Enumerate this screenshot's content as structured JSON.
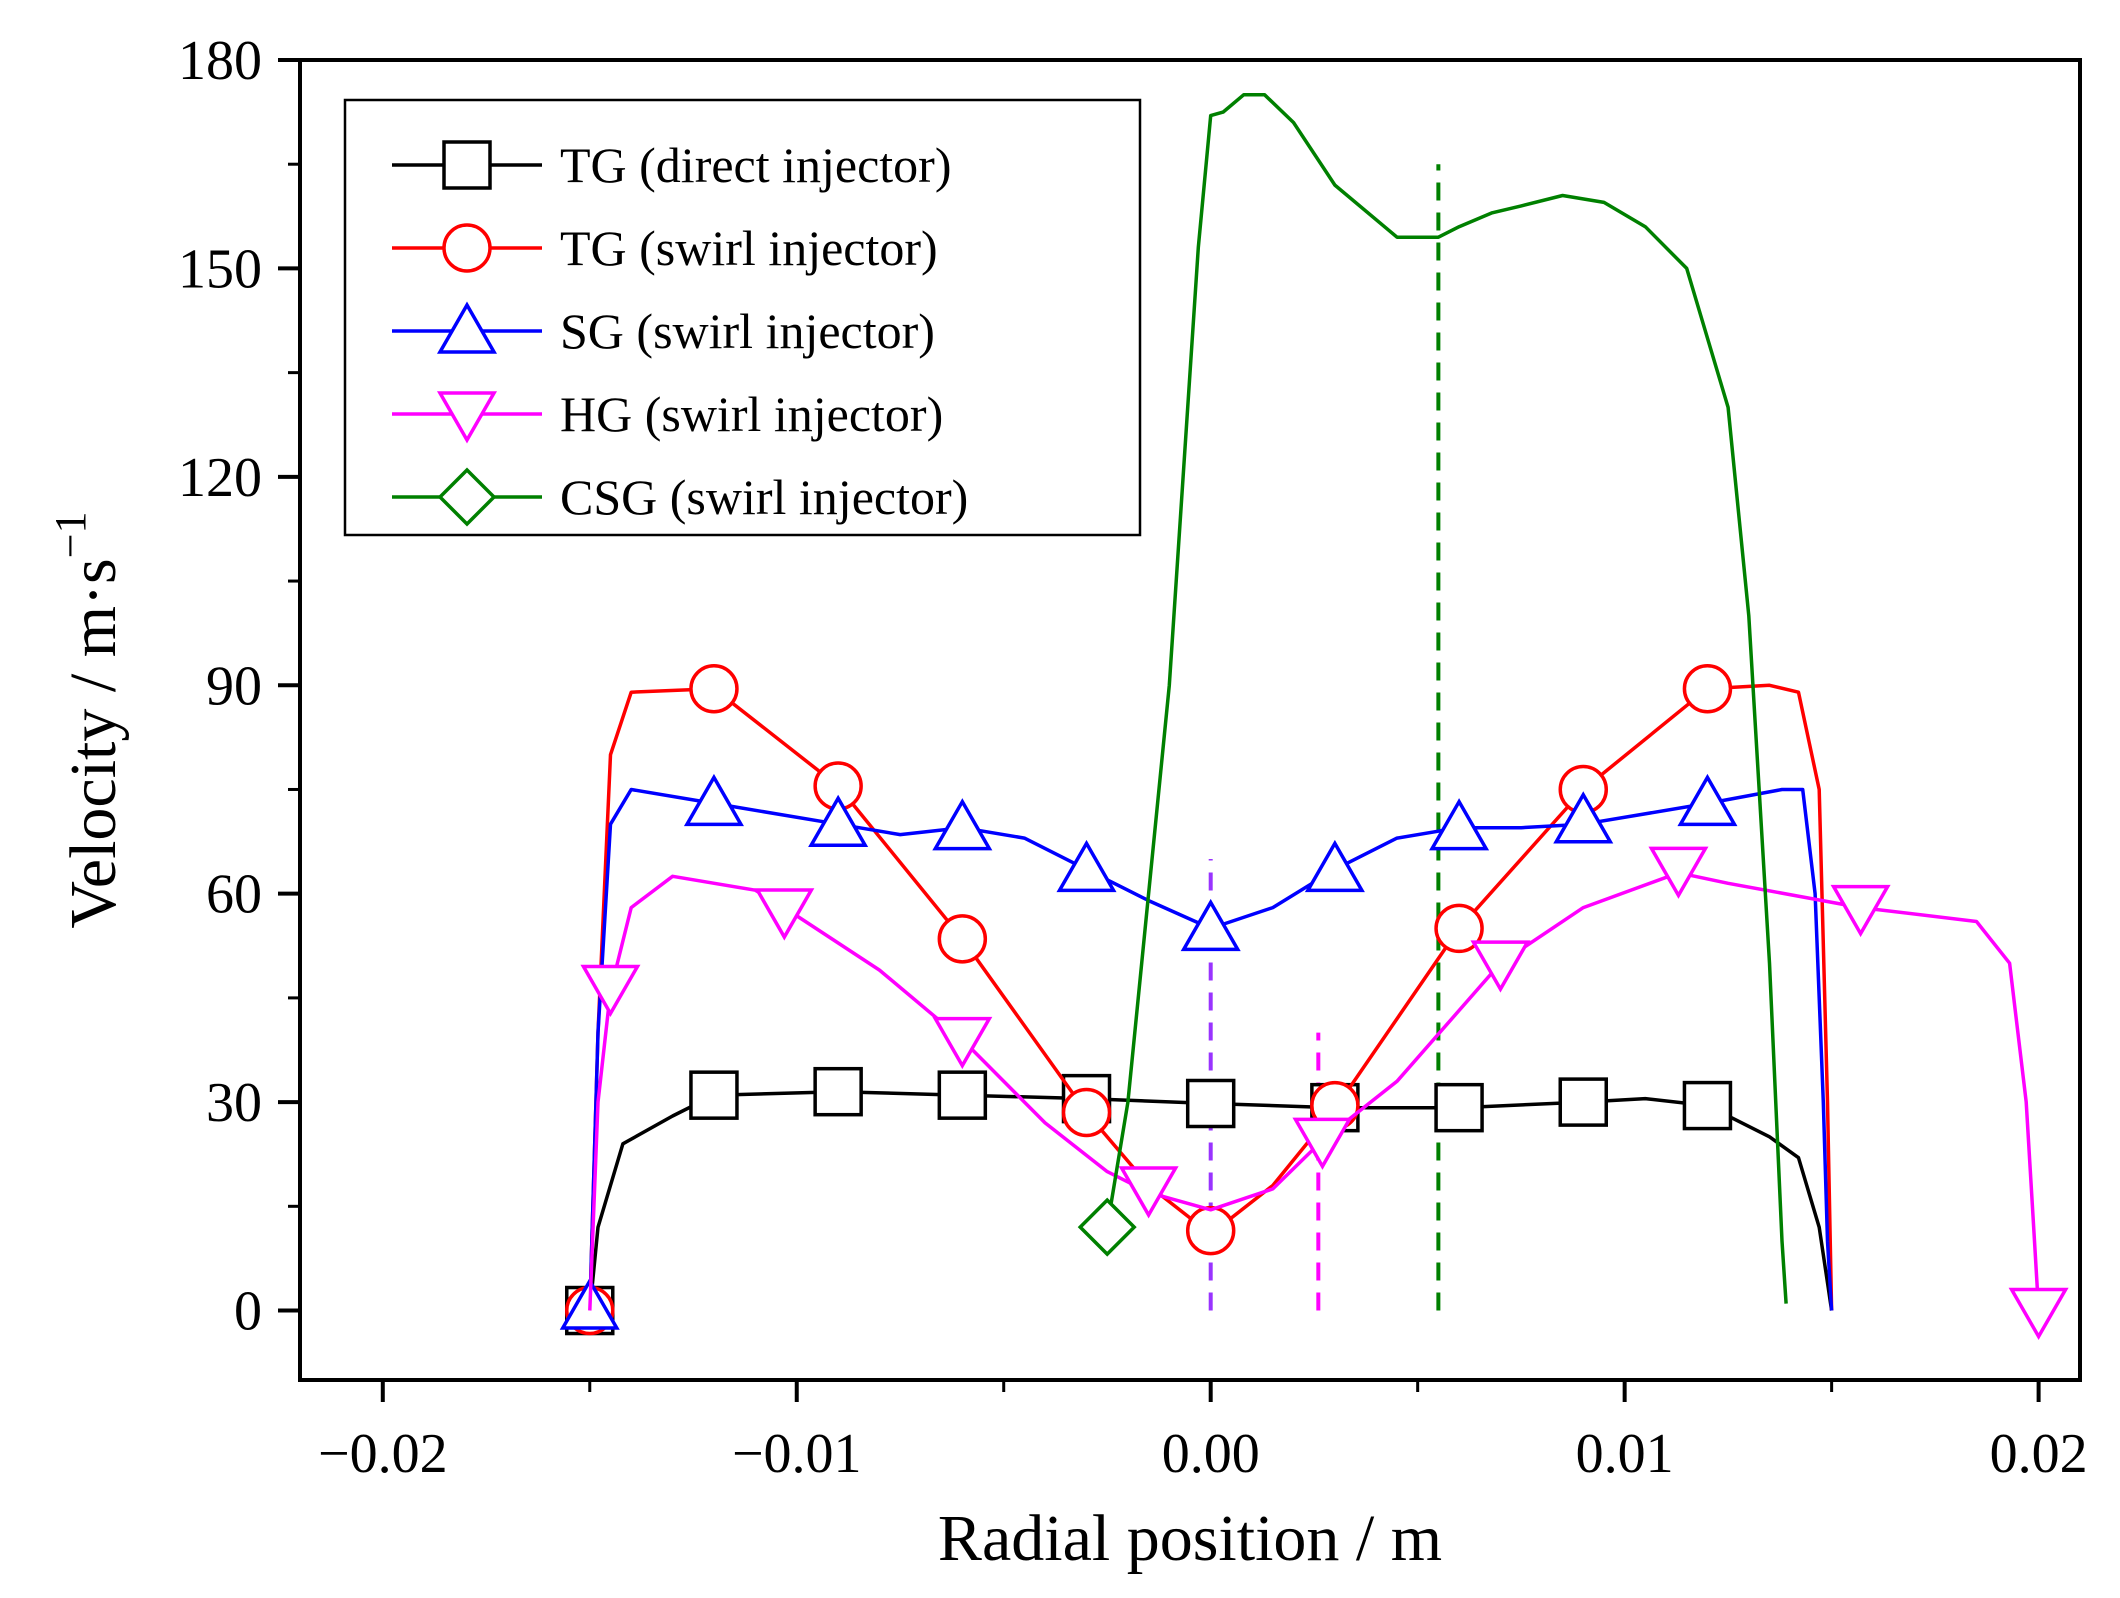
{
  "chart_data": {
    "type": "line",
    "xlabel": "Radial position / m",
    "ylabel": "Velocity / m·s",
    "ylabel_sup": "−1",
    "xlim": [
      -0.022,
      0.021
    ],
    "ylim": [
      -10,
      180
    ],
    "x_ticks": [
      -0.02,
      -0.01,
      0.0,
      0.01,
      0.02
    ],
    "x_tick_labels": [
      "−0.02",
      "−0.01",
      "0.00",
      "0.01",
      "0.02"
    ],
    "y_ticks": [
      0,
      30,
      60,
      90,
      120,
      150,
      180
    ],
    "y_tick_labels": [
      "0",
      "30",
      "60",
      "90",
      "120",
      "150",
      "180"
    ],
    "grid": false,
    "legend_position": "top-left",
    "series": [
      {
        "name": "TG (direct injector)",
        "color": "#000000",
        "marker": "square",
        "line": [
          [
            -0.015,
            0
          ],
          [
            -0.0148,
            12
          ],
          [
            -0.0142,
            24
          ],
          [
            -0.013,
            28
          ],
          [
            -0.012,
            31
          ],
          [
            -0.009,
            31.5
          ],
          [
            -0.006,
            31
          ],
          [
            -0.003,
            30.5
          ],
          [
            0,
            29.8
          ],
          [
            0.003,
            29.2
          ],
          [
            0.006,
            29.2
          ],
          [
            0.009,
            30
          ],
          [
            0.0105,
            30.5
          ],
          [
            0.012,
            29.5
          ],
          [
            0.0135,
            25
          ],
          [
            0.0142,
            22
          ],
          [
            0.0147,
            12
          ],
          [
            0.0149,
            4
          ],
          [
            0.015,
            0
          ]
        ],
        "markers": [
          [
            -0.015,
            0
          ],
          [
            -0.012,
            31
          ],
          [
            -0.009,
            31.5
          ],
          [
            -0.006,
            31
          ],
          [
            -0.003,
            30.5
          ],
          [
            0,
            29.8
          ],
          [
            0.003,
            29.2
          ],
          [
            0.006,
            29.2
          ],
          [
            0.009,
            30
          ],
          [
            0.012,
            29.5
          ]
        ]
      },
      {
        "name": "TG (swirl injector)",
        "color": "#ff0000",
        "marker": "circle",
        "line": [
          [
            -0.015,
            0
          ],
          [
            -0.0148,
            40
          ],
          [
            -0.0145,
            80
          ],
          [
            -0.014,
            89
          ],
          [
            -0.012,
            89.5
          ],
          [
            -0.009,
            75.5
          ],
          [
            -0.006,
            53.5
          ],
          [
            -0.003,
            28.5
          ],
          [
            -0.0015,
            18
          ],
          [
            0,
            11
          ],
          [
            0.0015,
            18
          ],
          [
            0.003,
            29
          ],
          [
            0.006,
            55
          ],
          [
            0.009,
            75
          ],
          [
            0.012,
            89.5
          ],
          [
            0.0135,
            90
          ],
          [
            0.0142,
            89
          ],
          [
            0.0147,
            75
          ],
          [
            0.0149,
            30
          ],
          [
            0.015,
            0
          ]
        ],
        "markers": [
          [
            -0.015,
            0
          ],
          [
            -0.012,
            89.5
          ],
          [
            -0.009,
            75.5
          ],
          [
            -0.006,
            53.5
          ],
          [
            -0.003,
            28.5
          ],
          [
            0,
            11.5
          ],
          [
            0.003,
            29.5
          ],
          [
            0.006,
            55
          ],
          [
            0.009,
            75
          ],
          [
            0.012,
            89.5
          ]
        ]
      },
      {
        "name": "SG (swirl injector)",
        "color": "#0000ff",
        "marker": "triangle-up",
        "line": [
          [
            -0.015,
            0
          ],
          [
            -0.0148,
            40
          ],
          [
            -0.0145,
            70
          ],
          [
            -0.014,
            75
          ],
          [
            -0.012,
            73
          ],
          [
            -0.009,
            70
          ],
          [
            -0.0075,
            68.5
          ],
          [
            -0.006,
            69.5
          ],
          [
            -0.0045,
            68
          ],
          [
            -0.003,
            63.5
          ],
          [
            -0.0015,
            59
          ],
          [
            0,
            55
          ],
          [
            0.0015,
            58
          ],
          [
            0.003,
            63.5
          ],
          [
            0.0045,
            68
          ],
          [
            0.006,
            69.5
          ],
          [
            0.0075,
            69.5
          ],
          [
            0.009,
            70
          ],
          [
            0.012,
            73
          ],
          [
            0.0138,
            75
          ],
          [
            0.0143,
            75
          ],
          [
            0.0146,
            60
          ],
          [
            0.0148,
            30
          ],
          [
            0.0149,
            10
          ],
          [
            0.015,
            0
          ]
        ],
        "markers": [
          [
            -0.015,
            0.5
          ],
          [
            -0.012,
            73
          ],
          [
            -0.009,
            70
          ],
          [
            -0.006,
            69.5
          ],
          [
            -0.003,
            63.5
          ],
          [
            0,
            55
          ],
          [
            0.003,
            63.5
          ],
          [
            0.006,
            69.5
          ],
          [
            0.009,
            70.5
          ],
          [
            0.012,
            73
          ]
        ]
      },
      {
        "name": "HG (swirl injector)",
        "color": "#ff00ff",
        "marker": "triangle-down",
        "line": [
          [
            -0.015,
            0
          ],
          [
            -0.0148,
            30
          ],
          [
            -0.0145,
            46
          ],
          [
            -0.014,
            58
          ],
          [
            -0.013,
            62.5
          ],
          [
            -0.011,
            60.5
          ],
          [
            -0.0103,
            58
          ],
          [
            -0.008,
            49
          ],
          [
            -0.006,
            39
          ],
          [
            -0.004,
            27
          ],
          [
            -0.0025,
            20
          ],
          [
            -0.0015,
            17
          ],
          [
            0,
            14.5
          ],
          [
            0.0015,
            17.5
          ],
          [
            0.0027,
            24.5
          ],
          [
            0.0045,
            33
          ],
          [
            0.007,
            50
          ],
          [
            0.009,
            58
          ],
          [
            0.0113,
            63
          ],
          [
            0.0125,
            61.5
          ],
          [
            0.0157,
            58
          ],
          [
            0.0185,
            56
          ],
          [
            0.0193,
            50
          ],
          [
            0.0197,
            30
          ],
          [
            0.0199,
            10
          ],
          [
            0.02,
            0
          ]
        ],
        "markers": [
          [
            -0.0145,
            46.5
          ],
          [
            -0.0103,
            57.5
          ],
          [
            -0.006,
            39
          ],
          [
            -0.0015,
            17.5
          ],
          [
            0.0027,
            24.5
          ],
          [
            0.007,
            50
          ],
          [
            0.0113,
            63.5
          ],
          [
            0.0157,
            58
          ],
          [
            0.02,
            0
          ]
        ]
      },
      {
        "name": "CSG (swirl injector)",
        "color": "#008000",
        "marker": "diamond",
        "line": [
          [
            -0.0025,
            12
          ],
          [
            -0.002,
            30
          ],
          [
            -0.001,
            90
          ],
          [
            -0.0003,
            153
          ],
          [
            0,
            172
          ],
          [
            0.0003,
            172.5
          ],
          [
            0.0008,
            175
          ],
          [
            0.0013,
            175
          ],
          [
            0.002,
            171
          ],
          [
            0.003,
            162
          ],
          [
            0.0045,
            154.5
          ],
          [
            0.0055,
            154.5
          ],
          [
            0.006,
            156
          ],
          [
            0.0068,
            158
          ],
          [
            0.0075,
            159
          ],
          [
            0.0085,
            160.5
          ],
          [
            0.0095,
            159.5
          ],
          [
            0.0105,
            156
          ],
          [
            0.0115,
            150
          ],
          [
            0.0125,
            130
          ],
          [
            0.013,
            100
          ],
          [
            0.0135,
            50
          ],
          [
            0.0138,
            10
          ],
          [
            0.0139,
            1
          ]
        ],
        "markers": [
          [
            -0.0025,
            12
          ]
        ]
      }
    ],
    "vertical_dashed_lines": [
      {
        "color": "#9933ff",
        "x": 0.0,
        "y_range": [
          0,
          65
        ]
      },
      {
        "color": "#ff00ff",
        "x": 0.0026,
        "y_range": [
          0,
          40
        ]
      },
      {
        "color": "#008000",
        "x": 0.0055,
        "y_range": [
          0,
          165
        ]
      }
    ]
  }
}
